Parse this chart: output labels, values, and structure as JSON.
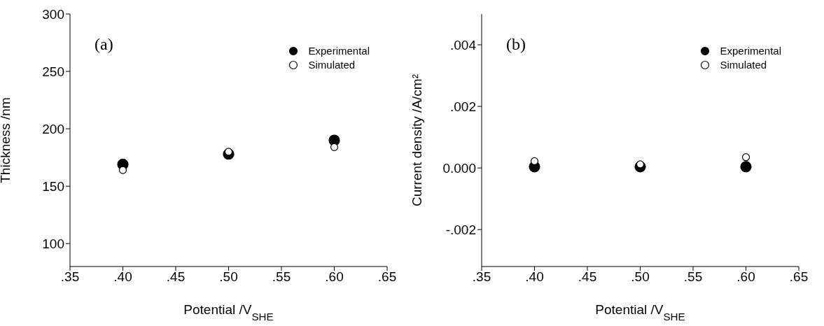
{
  "chart_data": [
    {
      "type": "scatter",
      "xlabel": "Potential /V$_{SHE}$",
      "ylabel": "Thickness /nm",
      "annotations": [
        "(a)"
      ],
      "x": [
        0.4,
        0.5,
        0.6
      ],
      "series": [
        {
          "name": "Experimental",
          "color": "#000000",
          "values": [
            169,
            178,
            190
          ]
        },
        {
          "name": "Simulated",
          "color": "#ffffff",
          "values": [
            164,
            180,
            184
          ]
        }
      ],
      "xlim": [
        0.35,
        0.65
      ],
      "xticks": [
        {
          "value": 0.35,
          "label": ".35"
        },
        {
          "value": 0.4,
          "label": ".40"
        },
        {
          "value": 0.45,
          "label": ".45"
        },
        {
          "value": 0.5,
          "label": ".50"
        },
        {
          "value": 0.55,
          "label": ".55"
        },
        {
          "value": 0.6,
          "label": ".60"
        },
        {
          "value": 0.65,
          "label": ".65"
        }
      ],
      "ylim": [
        80,
        300
      ],
      "yticks": [
        100,
        150,
        200,
        250,
        300
      ],
      "legend": "top right",
      "marker": "circle",
      "grid": false
    },
    {
      "type": "scatter",
      "xlabel": "Potential /V$_{SHE}$",
      "ylabel": "Current density /A/cm²",
      "annotations": [
        "(b)"
      ],
      "x": [
        0.4,
        0.5,
        0.6
      ],
      "series": [
        {
          "name": "Experimental",
          "color": "#000000",
          "values": [
            4e-05,
            4e-05,
            4e-05
          ]
        },
        {
          "name": "Simulated",
          "color": "#ffffff",
          "values": [
            0.00022,
            0.00012,
            0.00035
          ]
        }
      ],
      "xlim": [
        0.35,
        0.65
      ],
      "xticks": [
        {
          "value": 0.35,
          "label": ".35"
        },
        {
          "value": 0.4,
          "label": ".40"
        },
        {
          "value": 0.45,
          "label": ".45"
        },
        {
          "value": 0.5,
          "label": ".50"
        },
        {
          "value": 0.55,
          "label": ".55"
        },
        {
          "value": 0.6,
          "label": ".60"
        },
        {
          "value": 0.65,
          "label": ".65"
        }
      ],
      "ylim": [
        -0.0032,
        0.005
      ],
      "yticks": [
        {
          "value": -0.002,
          "label": "-.002"
        },
        {
          "value": 0,
          "label": "0.000"
        },
        {
          "value": 0.002,
          "label": ".002"
        },
        {
          "value": 0.004,
          "label": ".004"
        }
      ],
      "legend": "top right",
      "marker": "circle",
      "grid": false
    }
  ]
}
